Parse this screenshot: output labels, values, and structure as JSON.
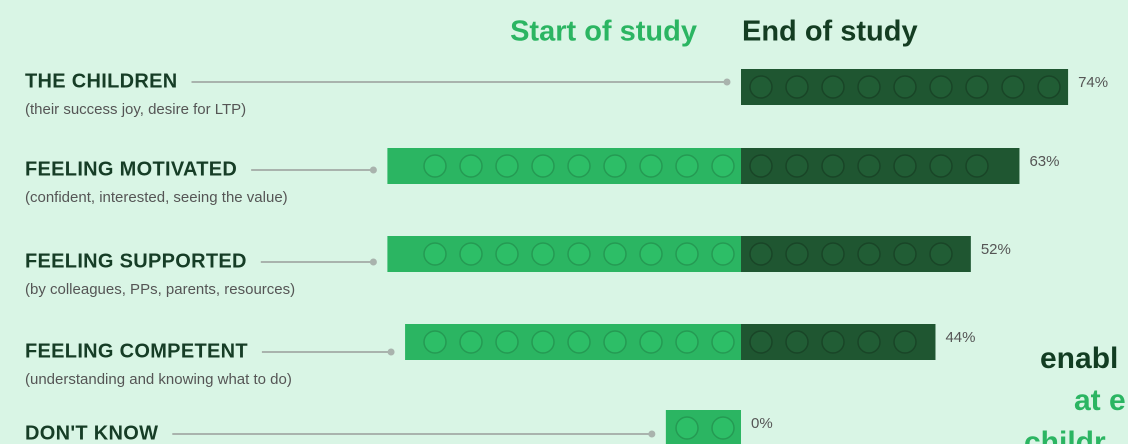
{
  "chart_data": {
    "type": "diverging-bar",
    "categories": [
      "THE CHILDREN",
      "FEELING MOTIVATED",
      "FEELING SUPPORTED",
      "FEELING COMPETENT",
      "DON'T KNOW"
    ],
    "subtitles": [
      "(their success joy, desire for LTP)",
      "(confident, interested, seeing the value)",
      "(by colleagues, PPs, parents, resources)",
      "(understanding and knowing what to do)",
      null
    ],
    "series": [
      {
        "name": "Start of study",
        "color": "#2bb562",
        "values": [
          0,
          80,
          80,
          76,
          17
        ]
      },
      {
        "name": "End of study",
        "color": "#1f5631",
        "values": [
          74,
          63,
          52,
          44,
          0
        ],
        "value_labels": [
          "74%",
          "63%",
          "52%",
          "44%",
          "0%"
        ]
      }
    ],
    "annotation": [
      "enabl",
      "at e",
      "childr"
    ]
  }
}
